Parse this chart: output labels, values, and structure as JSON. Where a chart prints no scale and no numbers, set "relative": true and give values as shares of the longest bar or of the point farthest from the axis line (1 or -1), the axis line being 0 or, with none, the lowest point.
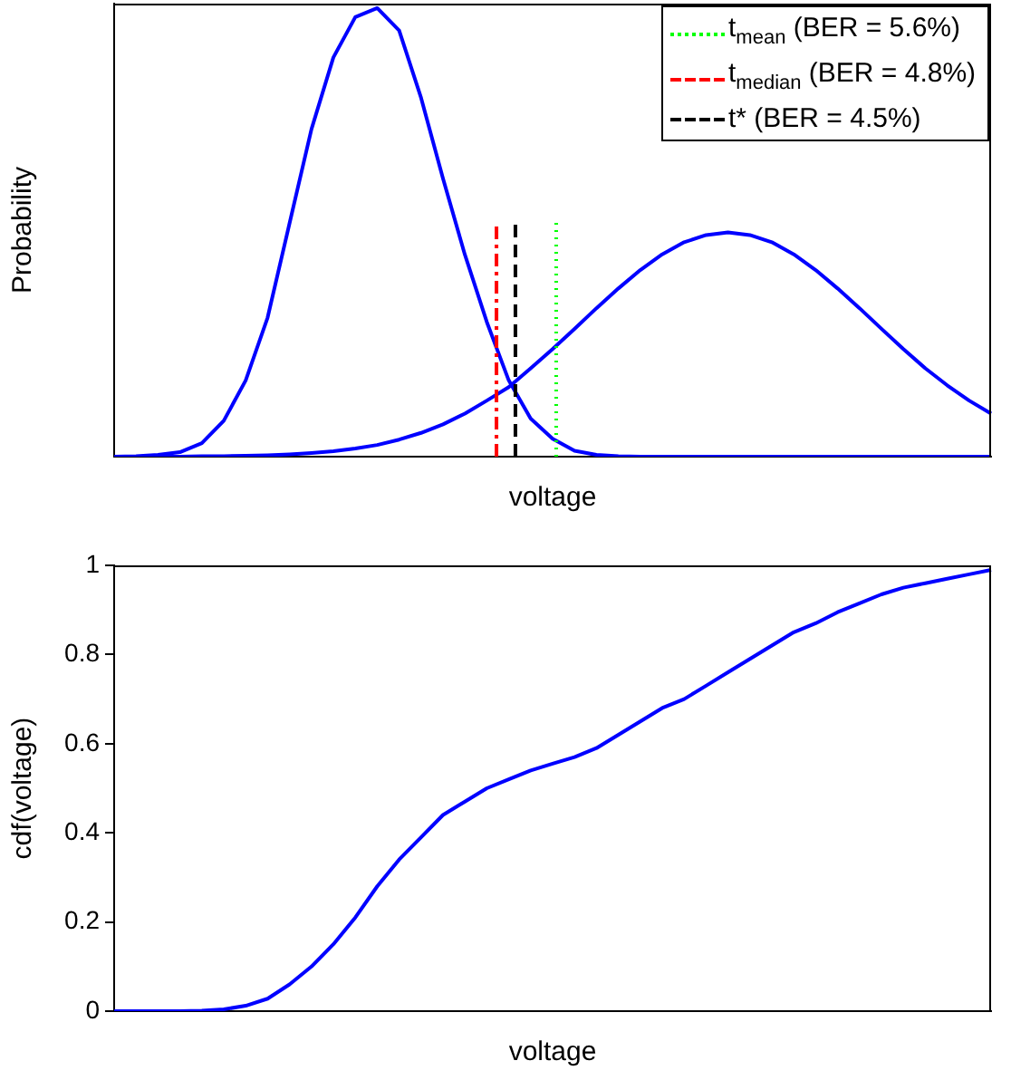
{
  "chart_data": [
    {
      "type": "line",
      "relative": true,
      "xlabel": "voltage",
      "ylabel": "Probability",
      "tick_labels": false,
      "annotations": [
        "t$_{mean}$ (BER = 5.6%)",
        "t$_{median}$ (BER = 4.8%)",
        "t* (BER = 4.5%)"
      ],
      "categories": [
        null,
        null,
        null,
        null,
        null,
        null,
        null,
        null,
        null,
        null,
        null,
        null,
        null,
        null,
        null,
        null,
        null,
        null,
        null,
        null,
        null,
        null,
        null,
        null,
        null,
        null,
        null,
        null,
        null,
        null,
        null,
        null,
        null,
        null,
        null,
        null,
        null,
        null,
        null,
        null,
        null
      ],
      "series": [
        {
          "color": "#0000ff",
          "values": [
            0,
            0.001,
            0.004,
            0.01,
            0.03,
            0.08,
            0.17,
            0.31,
            0.52,
            0.73,
            0.89,
            0.98,
            1,
            0.95,
            0.8,
            0.62,
            0.45,
            0.3,
            0.17,
            0.085,
            0.04,
            0.013,
            0.004,
            0.001,
            0,
            0,
            0,
            0,
            0,
            0,
            0,
            0,
            0,
            0,
            0,
            0,
            0,
            0,
            0,
            0,
            0
          ]
        },
        {
          "color": "#0000ff",
          "values": [
            0,
            0,
            0,
            0,
            0.001,
            0.001,
            0.002,
            0.003,
            0.005,
            0.008,
            0.012,
            0.018,
            0.026,
            0.038,
            0.053,
            0.072,
            0.096,
            0.125,
            0.155,
            0.197,
            0.24,
            0.285,
            0.331,
            0.375,
            0.416,
            0.451,
            0.478,
            0.494,
            0.5,
            0.494,
            0.478,
            0.451,
            0.416,
            0.375,
            0.331,
            0.285,
            0.24,
            0.197,
            0.159,
            0.125,
            0.096
          ]
        }
      ]
    },
    {
      "type": "line",
      "xlabel": "voltage",
      "ylabel": "cdf(voltage)",
      "ylim": [
        0,
        1
      ],
      "yticks": [
        0,
        0.2,
        0.4,
        0.6,
        0.8,
        1
      ],
      "tick_labels": "y",
      "categories": [
        null,
        null,
        null,
        null,
        null,
        null,
        null,
        null,
        null,
        null,
        null,
        null,
        null,
        null,
        null,
        null,
        null,
        null,
        null,
        null,
        null,
        null,
        null,
        null,
        null,
        null,
        null,
        null,
        null,
        null,
        null,
        null,
        null,
        null,
        null,
        null,
        null,
        null,
        null,
        null,
        null
      ],
      "series": [
        {
          "color": "#0000ff",
          "values": [
            0,
            0,
            0,
            0,
            0.001,
            0.004,
            0.012,
            0.028,
            0.06,
            0.1,
            0.15,
            0.21,
            0.28,
            0.34,
            0.39,
            0.44,
            0.47,
            0.5,
            0.52,
            0.54,
            0.555,
            0.57,
            0.59,
            0.62,
            0.65,
            0.68,
            0.7,
            0.73,
            0.76,
            0.79,
            0.82,
            0.85,
            0.87,
            0.895,
            0.915,
            0.935,
            0.95,
            0.96,
            0.97,
            0.98,
            0.99
          ]
        }
      ]
    }
  ]
}
